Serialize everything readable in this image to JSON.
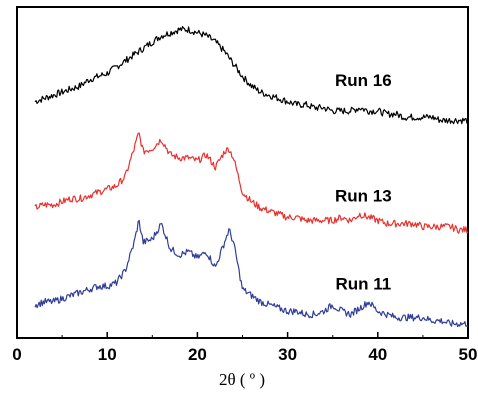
{
  "chart_data": {
    "type": "line",
    "xlabel": "2θ ( º )",
    "ylabel": "",
    "xlim": [
      0,
      50
    ],
    "ylim": [
      0,
      1
    ],
    "x_ticks": [
      0,
      10,
      20,
      30,
      40,
      50
    ],
    "y_ticks_shown": false,
    "grid": false,
    "legend": "none",
    "series": [
      {
        "name": "Run 16",
        "color": "#000000",
        "x": [
          2,
          3,
          4,
          5,
          6,
          7,
          8,
          9,
          10,
          11,
          12,
          13,
          14,
          15,
          16,
          17,
          18,
          19,
          20,
          21,
          22,
          23,
          24,
          25,
          26,
          27,
          28,
          29,
          30,
          31,
          32,
          33,
          34,
          35,
          36,
          37,
          38,
          39,
          40,
          41,
          42,
          43,
          44,
          45,
          46,
          47,
          48,
          49,
          50
        ],
        "y": [
          0.73,
          0.74,
          0.75,
          0.76,
          0.77,
          0.78,
          0.8,
          0.81,
          0.82,
          0.84,
          0.86,
          0.88,
          0.9,
          0.92,
          0.94,
          0.95,
          0.96,
          0.96,
          0.95,
          0.94,
          0.92,
          0.89,
          0.85,
          0.81,
          0.78,
          0.76,
          0.75,
          0.74,
          0.73,
          0.72,
          0.72,
          0.71,
          0.71,
          0.7,
          0.7,
          0.7,
          0.71,
          0.7,
          0.7,
          0.69,
          0.69,
          0.68,
          0.68,
          0.68,
          0.68,
          0.67,
          0.67,
          0.67,
          0.67
        ]
      },
      {
        "name": "Run 13",
        "color": "#e8312e",
        "x": [
          2,
          3,
          4,
          5,
          6,
          7,
          8,
          9,
          10,
          11,
          12,
          13,
          13.5,
          14,
          15,
          16,
          17,
          18,
          19,
          20,
          21,
          22,
          23,
          23.5,
          24,
          25,
          26,
          27,
          28,
          29,
          30,
          31,
          32,
          33,
          34,
          35,
          36,
          37,
          38,
          39,
          40,
          41,
          42,
          43,
          44,
          45,
          46,
          47,
          48,
          49,
          50
        ],
        "y": [
          0.39,
          0.4,
          0.4,
          0.41,
          0.42,
          0.42,
          0.43,
          0.44,
          0.45,
          0.46,
          0.49,
          0.58,
          0.63,
          0.57,
          0.58,
          0.61,
          0.56,
          0.55,
          0.55,
          0.54,
          0.56,
          0.52,
          0.57,
          0.58,
          0.55,
          0.44,
          0.41,
          0.39,
          0.38,
          0.37,
          0.36,
          0.36,
          0.35,
          0.35,
          0.35,
          0.35,
          0.36,
          0.35,
          0.37,
          0.36,
          0.35,
          0.34,
          0.34,
          0.34,
          0.34,
          0.33,
          0.33,
          0.33,
          0.33,
          0.32,
          0.32
        ]
      },
      {
        "name": "Run 11",
        "color": "#2f3d99",
        "x": [
          2,
          3,
          4,
          5,
          6,
          7,
          8,
          9,
          10,
          11,
          12,
          13,
          13.5,
          14,
          15,
          16,
          17,
          18,
          19,
          20,
          21,
          22,
          23,
          23.5,
          24,
          25,
          26,
          27,
          28,
          29,
          30,
          31,
          32,
          33,
          34,
          35,
          36,
          37,
          38,
          39,
          40,
          41,
          42,
          43,
          44,
          45,
          46,
          47,
          48,
          49,
          50
        ],
        "y": [
          0.08,
          0.09,
          0.09,
          0.1,
          0.11,
          0.12,
          0.13,
          0.14,
          0.14,
          0.15,
          0.19,
          0.28,
          0.35,
          0.28,
          0.29,
          0.34,
          0.26,
          0.24,
          0.25,
          0.23,
          0.25,
          0.2,
          0.28,
          0.32,
          0.28,
          0.13,
          0.11,
          0.09,
          0.08,
          0.07,
          0.06,
          0.06,
          0.05,
          0.05,
          0.06,
          0.08,
          0.06,
          0.05,
          0.07,
          0.09,
          0.06,
          0.05,
          0.04,
          0.04,
          0.04,
          0.04,
          0.03,
          0.03,
          0.02,
          0.02,
          0.02
        ]
      }
    ],
    "annotations": [
      {
        "text": "Run 16",
        "x": 38.4,
        "y": 0.78,
        "series": 0
      },
      {
        "text": "Run 13",
        "x": 38.4,
        "y": 0.41,
        "series": 1
      },
      {
        "text": "Run 11",
        "x": 38.4,
        "y": 0.13,
        "series": 2
      }
    ]
  }
}
